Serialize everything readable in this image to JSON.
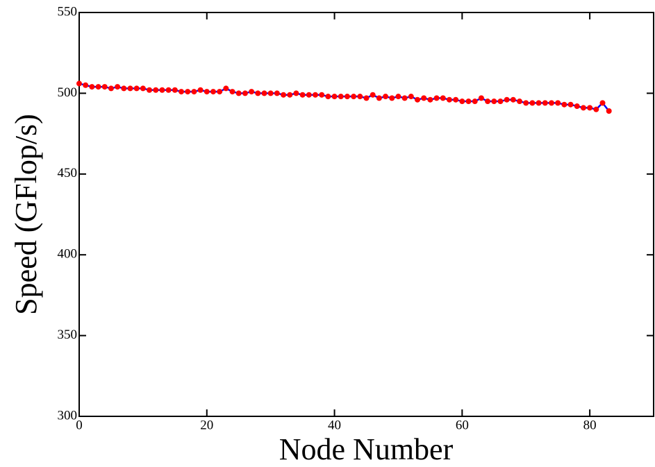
{
  "chart_data": {
    "type": "line",
    "x_label": "Node Number",
    "y_label": "Speed (GFlop/s)",
    "x": [
      0,
      1,
      2,
      3,
      4,
      5,
      6,
      7,
      8,
      9,
      10,
      11,
      12,
      13,
      14,
      15,
      16,
      17,
      18,
      19,
      20,
      21,
      22,
      23,
      24,
      25,
      26,
      27,
      28,
      29,
      30,
      31,
      32,
      33,
      34,
      35,
      36,
      37,
      38,
      39,
      40,
      41,
      42,
      43,
      44,
      45,
      46,
      47,
      48,
      49,
      50,
      51,
      52,
      53,
      54,
      55,
      56,
      57,
      58,
      59,
      60,
      61,
      62,
      63,
      64,
      65,
      66,
      67,
      68,
      69,
      70,
      71,
      72,
      73,
      74,
      75,
      76,
      77,
      78,
      79,
      80,
      81,
      82,
      83
    ],
    "series": [
      {
        "color": "#0000ff",
        "marker_color": "#ff0000",
        "values": [
          506,
          505,
          504,
          504,
          504,
          503,
          504,
          503,
          503,
          503,
          503,
          502,
          502,
          502,
          502,
          502,
          501,
          501,
          501,
          502,
          501,
          501,
          501,
          503,
          501,
          500,
          500,
          501,
          500,
          500,
          500,
          500,
          499,
          499,
          500,
          499,
          499,
          499,
          499,
          498,
          498,
          498,
          498,
          498,
          498,
          497,
          499,
          497,
          498,
          497,
          498,
          497,
          498,
          496,
          497,
          496,
          497,
          497,
          496,
          496,
          495,
          495,
          495,
          497,
          495,
          495,
          495,
          496,
          496,
          495,
          494,
          494,
          494,
          494,
          494,
          494,
          493,
          493,
          492,
          491,
          491,
          490,
          494,
          489
        ]
      }
    ],
    "xlim": [
      0,
      90
    ],
    "xticks": [
      0,
      20,
      40,
      60,
      80
    ],
    "ylim": [
      300,
      550
    ],
    "yticks": [
      300,
      350,
      400,
      450,
      500,
      550
    ]
  }
}
